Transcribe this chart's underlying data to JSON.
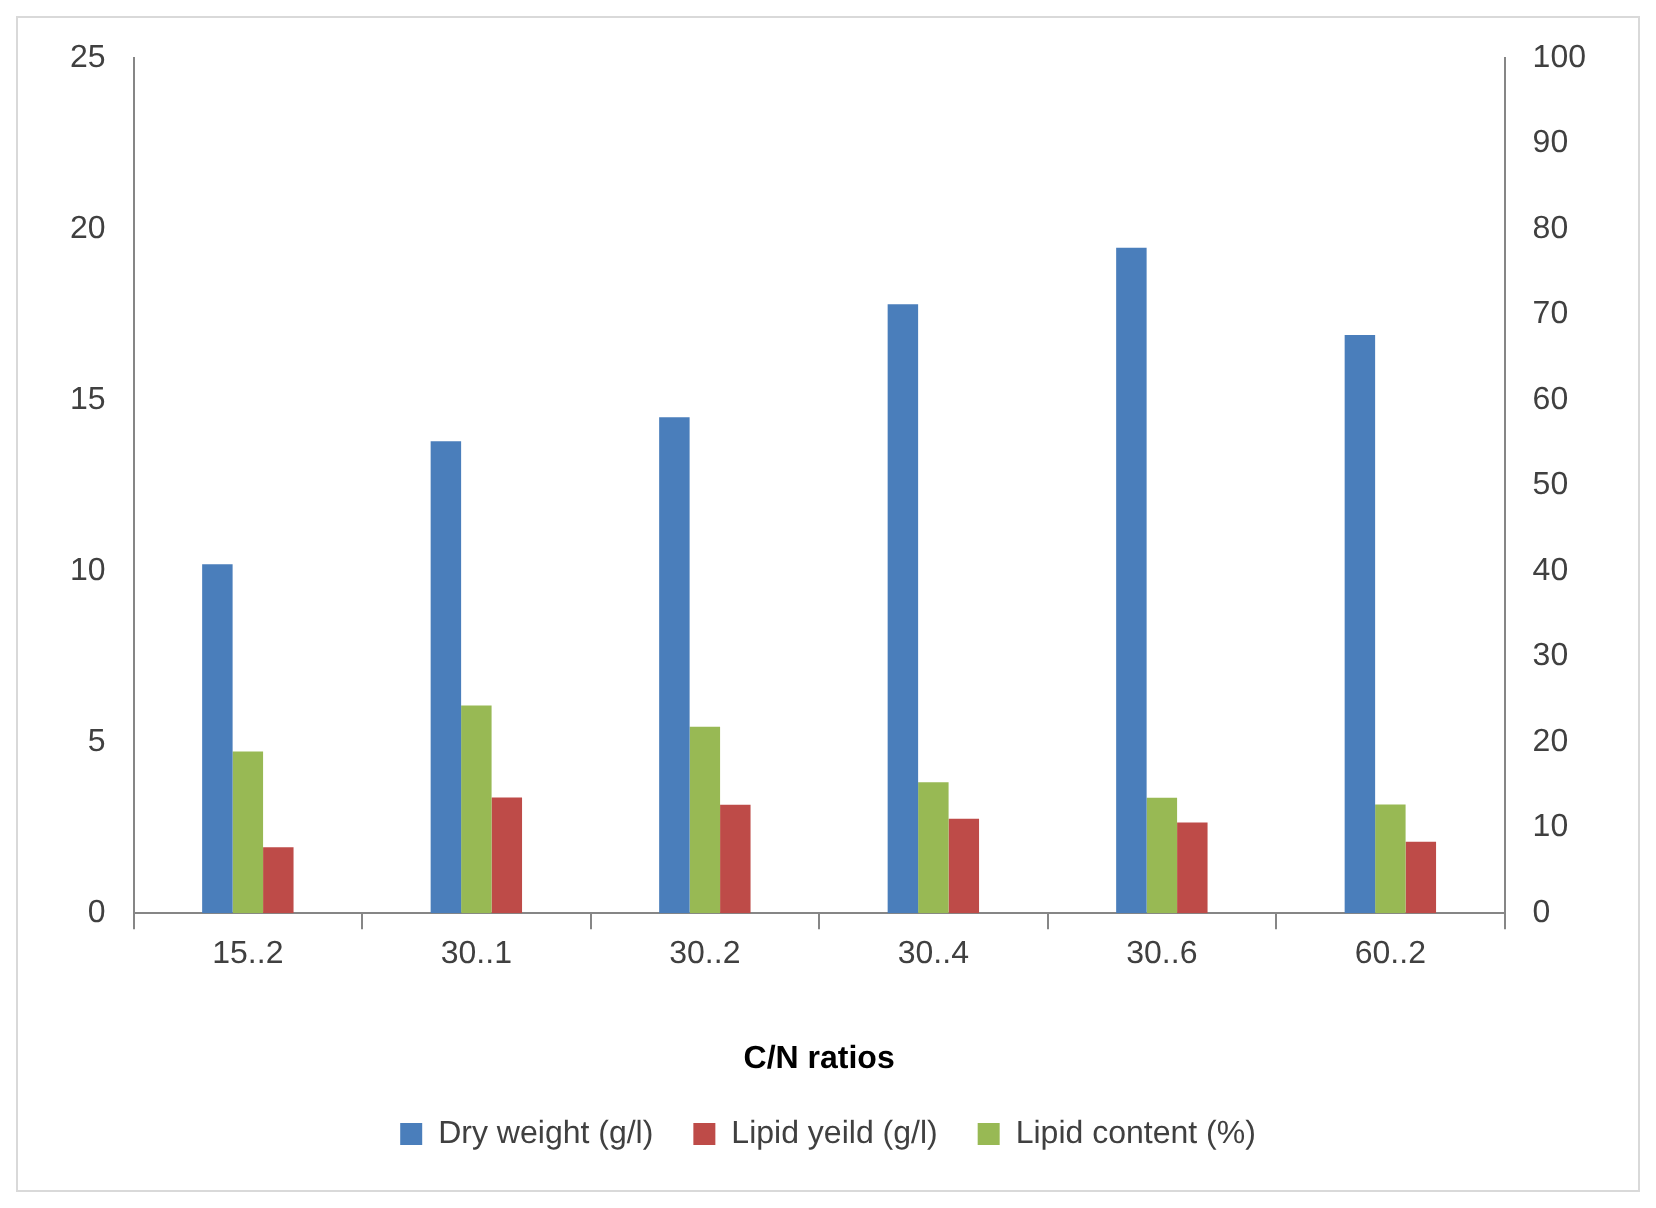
{
  "chart_data": {
    "type": "bar",
    "xlabel": "C/N ratios",
    "categories": [
      "15..2",
      "30..1",
      "30..2",
      "30..4",
      "30..6",
      "60..2"
    ],
    "series": [
      {
        "name": "Dry weight (g/l)",
        "color": "#4a7ebb",
        "values": [
          10.2,
          13.8,
          14.5,
          17.8,
          19.45,
          16.9
        ]
      },
      {
        "name": "Lipid yeild (g/l)",
        "color": "#be4b48",
        "values": [
          1.93,
          3.38,
          3.17,
          2.76,
          2.65,
          2.09
        ]
      },
      {
        "name": "Lipid content (%)",
        "color": "#98b954",
        "axis": "y2",
        "values": [
          18.9,
          24.3,
          21.8,
          15.3,
          13.5,
          12.7
        ]
      }
    ],
    "ylim": [
      0,
      25
    ],
    "yticks": [
      0,
      5,
      10,
      15,
      20,
      25
    ],
    "y2lim": [
      0,
      100
    ],
    "y2ticks": [
      0,
      10,
      20,
      30,
      40,
      50,
      60,
      70,
      80,
      90,
      100
    ],
    "grid": false,
    "legend": "bottom"
  }
}
